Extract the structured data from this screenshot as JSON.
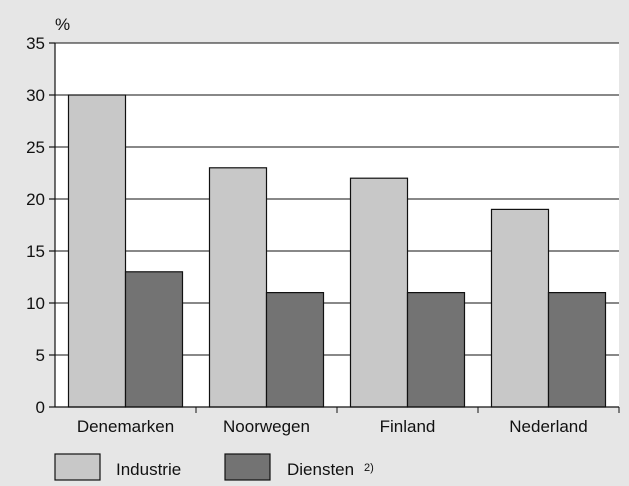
{
  "chart_data": {
    "type": "bar",
    "title": "",
    "ylabel": "%",
    "xlabel": "",
    "categories": [
      "Denemarken",
      "Noorwegen",
      "Finland",
      "Nederland"
    ],
    "series": [
      {
        "name": "Industrie",
        "values": [
          30,
          23,
          22,
          19
        ],
        "color": "#c8c8c8"
      },
      {
        "name": "Diensten",
        "name_suffix": "2)",
        "values": [
          13,
          11,
          11,
          11
        ],
        "color": "#737373"
      }
    ],
    "ylim": [
      0,
      35
    ],
    "yticks": [
      0,
      5,
      10,
      15,
      20,
      25,
      30,
      35
    ],
    "grid": true,
    "legend_position": "bottom-left"
  }
}
